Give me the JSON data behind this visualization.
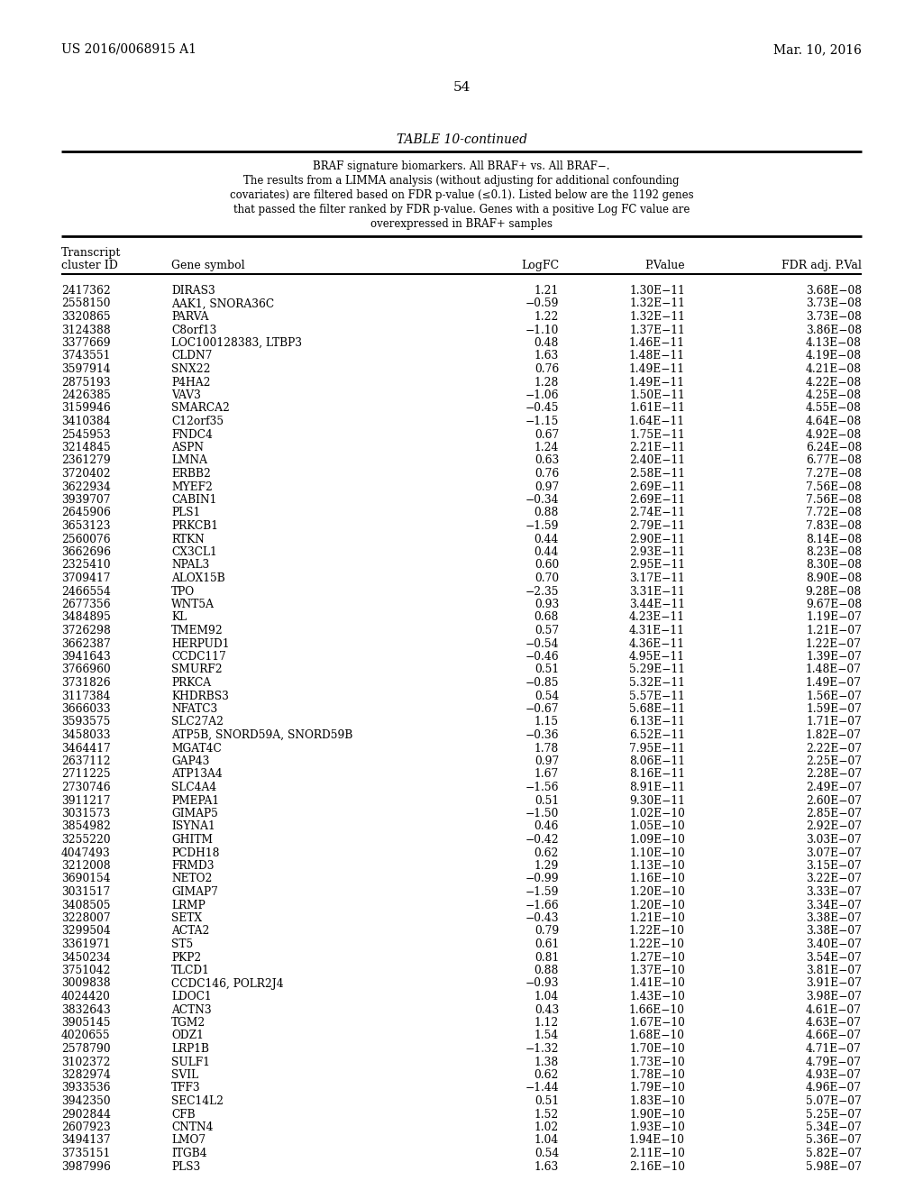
{
  "patent_left": "US 2016/0068915 A1",
  "patent_right": "Mar. 10, 2016",
  "page_number": "54",
  "table_title": "TABLE 10-continued",
  "table_subtitle_lines": [
    "BRAF signature biomarkers. All BRAF+ vs. All BRAF−.",
    "The results from a LIMMA analysis (without adjusting for additional confounding",
    "covariates) are filtered based on FDR p-value (≤0.1). Listed below are the 1192 genes",
    "that passed the filter ranked by FDR p-value. Genes with a positive Log FC value are",
    "overexpressed in BRAF+ samples"
  ],
  "col_header1": "Transcript",
  "col_header2a": "cluster ID",
  "col_header2b": "Gene symbol",
  "col_header2c": "LogFC",
  "col_header2d": "P.Value",
  "col_header2e": "FDR adj. P.Val",
  "rows": [
    [
      "2417362",
      "DIRAS3",
      "1.21",
      "1.30E−11",
      "3.68E−08"
    ],
    [
      "2558150",
      "AAK1, SNORA36C",
      "−0.59",
      "1.32E−11",
      "3.73E−08"
    ],
    [
      "3320865",
      "PARVA",
      "1.22",
      "1.32E−11",
      "3.73E−08"
    ],
    [
      "3124388",
      "C8orf13",
      "−1.10",
      "1.37E−11",
      "3.86E−08"
    ],
    [
      "3377669",
      "LOC100128383, LTBP3",
      "0.48",
      "1.46E−11",
      "4.13E−08"
    ],
    [
      "3743551",
      "CLDN7",
      "1.63",
      "1.48E−11",
      "4.19E−08"
    ],
    [
      "3597914",
      "SNX22",
      "0.76",
      "1.49E−11",
      "4.21E−08"
    ],
    [
      "2875193",
      "P4HA2",
      "1.28",
      "1.49E−11",
      "4.22E−08"
    ],
    [
      "2426385",
      "VAV3",
      "−1.06",
      "1.50E−11",
      "4.25E−08"
    ],
    [
      "3159946",
      "SMARCA2",
      "−0.45",
      "1.61E−11",
      "4.55E−08"
    ],
    [
      "3410384",
      "C12orf35",
      "−1.15",
      "1.64E−11",
      "4.64E−08"
    ],
    [
      "2545953",
      "FNDC4",
      "0.67",
      "1.75E−11",
      "4.92E−08"
    ],
    [
      "3214845",
      "ASPN",
      "1.24",
      "2.21E−11",
      "6.24E−08"
    ],
    [
      "2361279",
      "LMNA",
      "0.63",
      "2.40E−11",
      "6.77E−08"
    ],
    [
      "3720402",
      "ERBB2",
      "0.76",
      "2.58E−11",
      "7.27E−08"
    ],
    [
      "3622934",
      "MYEF2",
      "0.97",
      "2.69E−11",
      "7.56E−08"
    ],
    [
      "3939707",
      "CABIN1",
      "−0.34",
      "2.69E−11",
      "7.56E−08"
    ],
    [
      "2645906",
      "PLS1",
      "0.88",
      "2.74E−11",
      "7.72E−08"
    ],
    [
      "3653123",
      "PRKCB1",
      "−1.59",
      "2.79E−11",
      "7.83E−08"
    ],
    [
      "2560076",
      "RTKN",
      "0.44",
      "2.90E−11",
      "8.14E−08"
    ],
    [
      "3662696",
      "CX3CL1",
      "0.44",
      "2.93E−11",
      "8.23E−08"
    ],
    [
      "2325410",
      "NPAL3",
      "0.60",
      "2.95E−11",
      "8.30E−08"
    ],
    [
      "3709417",
      "ALOX15B",
      "0.70",
      "3.17E−11",
      "8.90E−08"
    ],
    [
      "2466554",
      "TPO",
      "−2.35",
      "3.31E−11",
      "9.28E−08"
    ],
    [
      "2677356",
      "WNT5A",
      "0.93",
      "3.44E−11",
      "9.67E−08"
    ],
    [
      "3484895",
      "KL",
      "0.68",
      "4.23E−11",
      "1.19E−07"
    ],
    [
      "3726298",
      "TMEM92",
      "0.57",
      "4.31E−11",
      "1.21E−07"
    ],
    [
      "3662387",
      "HERPUD1",
      "−0.54",
      "4.36E−11",
      "1.22E−07"
    ],
    [
      "3941643",
      "CCDC117",
      "−0.46",
      "4.95E−11",
      "1.39E−07"
    ],
    [
      "3766960",
      "SMURF2",
      "0.51",
      "5.29E−11",
      "1.48E−07"
    ],
    [
      "3731826",
      "PRKCA",
      "−0.85",
      "5.32E−11",
      "1.49E−07"
    ],
    [
      "3117384",
      "KHDRBS3",
      "0.54",
      "5.57E−11",
      "1.56E−07"
    ],
    [
      "3666033",
      "NFATC3",
      "−0.67",
      "5.68E−11",
      "1.59E−07"
    ],
    [
      "3593575",
      "SLC27A2",
      "1.15",
      "6.13E−11",
      "1.71E−07"
    ],
    [
      "3458033",
      "ATP5B, SNORD59A, SNORD59B",
      "−0.36",
      "6.52E−11",
      "1.82E−07"
    ],
    [
      "3464417",
      "MGAT4C",
      "1.78",
      "7.95E−11",
      "2.22E−07"
    ],
    [
      "2637112",
      "GAP43",
      "0.97",
      "8.06E−11",
      "2.25E−07"
    ],
    [
      "2711225",
      "ATP13A4",
      "1.67",
      "8.16E−11",
      "2.28E−07"
    ],
    [
      "2730746",
      "SLC4A4",
      "−1.56",
      "8.91E−11",
      "2.49E−07"
    ],
    [
      "3911217",
      "PMEPA1",
      "0.51",
      "9.30E−11",
      "2.60E−07"
    ],
    [
      "3031573",
      "GIMAP5",
      "−1.50",
      "1.02E−10",
      "2.85E−07"
    ],
    [
      "3854982",
      "ISYNA1",
      "0.46",
      "1.05E−10",
      "2.92E−07"
    ],
    [
      "3255220",
      "GHITM",
      "−0.42",
      "1.09E−10",
      "3.03E−07"
    ],
    [
      "4047493",
      "PCDH18",
      "0.62",
      "1.10E−10",
      "3.07E−07"
    ],
    [
      "3212008",
      "FRMD3",
      "1.29",
      "1.13E−10",
      "3.15E−07"
    ],
    [
      "3690154",
      "NETO2",
      "−0.99",
      "1.16E−10",
      "3.22E−07"
    ],
    [
      "3031517",
      "GIMAP7",
      "−1.59",
      "1.20E−10",
      "3.33E−07"
    ],
    [
      "3408505",
      "LRMP",
      "−1.66",
      "1.20E−10",
      "3.34E−07"
    ],
    [
      "3228007",
      "SETX",
      "−0.43",
      "1.21E−10",
      "3.38E−07"
    ],
    [
      "3299504",
      "ACTA2",
      "0.79",
      "1.22E−10",
      "3.38E−07"
    ],
    [
      "3361971",
      "ST5",
      "0.61",
      "1.22E−10",
      "3.40E−07"
    ],
    [
      "3450234",
      "PKP2",
      "0.81",
      "1.27E−10",
      "3.54E−07"
    ],
    [
      "3751042",
      "TLCD1",
      "0.88",
      "1.37E−10",
      "3.81E−07"
    ],
    [
      "3009838",
      "CCDC146, POLR2J4",
      "−0.93",
      "1.41E−10",
      "3.91E−07"
    ],
    [
      "4024420",
      "LDOC1",
      "1.04",
      "1.43E−10",
      "3.98E−07"
    ],
    [
      "3832643",
      "ACTN3",
      "0.43",
      "1.66E−10",
      "4.61E−07"
    ],
    [
      "3905145",
      "TGM2",
      "1.12",
      "1.67E−10",
      "4.63E−07"
    ],
    [
      "4020655",
      "ODZ1",
      "1.54",
      "1.68E−10",
      "4.66E−07"
    ],
    [
      "2578790",
      "LRP1B",
      "−1.32",
      "1.70E−10",
      "4.71E−07"
    ],
    [
      "3102372",
      "SULF1",
      "1.38",
      "1.73E−10",
      "4.79E−07"
    ],
    [
      "3282974",
      "SVIL",
      "0.62",
      "1.78E−10",
      "4.93E−07"
    ],
    [
      "3933536",
      "TFF3",
      "−1.44",
      "1.79E−10",
      "4.96E−07"
    ],
    [
      "3942350",
      "SEC14L2",
      "0.51",
      "1.83E−10",
      "5.07E−07"
    ],
    [
      "2902844",
      "CFB",
      "1.52",
      "1.90E−10",
      "5.25E−07"
    ],
    [
      "2607923",
      "CNTN4",
      "1.02",
      "1.93E−10",
      "5.34E−07"
    ],
    [
      "3494137",
      "LMO7",
      "1.04",
      "1.94E−10",
      "5.36E−07"
    ],
    [
      "3735151",
      "ITGB4",
      "0.54",
      "2.11E−10",
      "5.82E−07"
    ],
    [
      "3987996",
      "PLS3",
      "1.63",
      "2.16E−10",
      "5.98E−07"
    ]
  ]
}
